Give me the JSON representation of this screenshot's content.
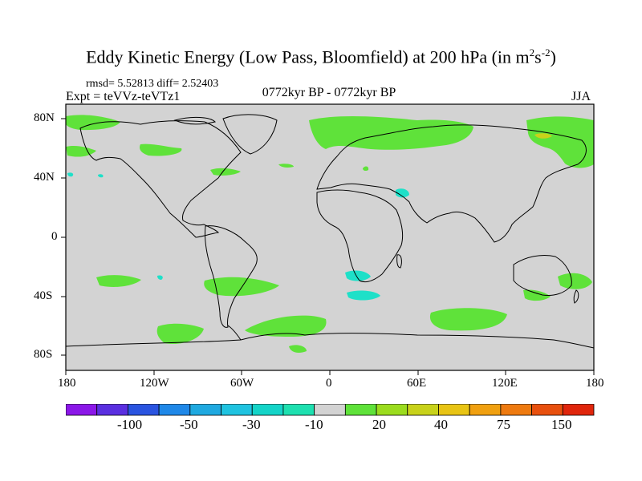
{
  "title": {
    "main": "Eddy Kinetic Energy (Low Pass, Bloomfield) at 200 hPa (in m",
    "sup1": "2",
    "mid": "s",
    "sup2": "-2",
    "end": ")"
  },
  "stats": "rmsd= 5.52813 diff= 2.52403",
  "experiment": "Expt = teVVz-teVTz1",
  "period": "0772kyr BP - 0772kyr BP",
  "season": "JJA",
  "lat_labels": [
    "80N",
    "40N",
    "0",
    "40S",
    "80S"
  ],
  "lon_labels": [
    "180",
    "120W",
    "60W",
    "0",
    "60E",
    "120E",
    "180"
  ],
  "colorbar": {
    "labels": [
      "-100",
      "-50",
      "-30",
      "-10",
      "20",
      "40",
      "75",
      "150"
    ],
    "colors": [
      "#8b17e8",
      "#5a2fe0",
      "#2a54e0",
      "#1f88e8",
      "#1fa9e0",
      "#1fc3e0",
      "#14d4c8",
      "#1ee0b0",
      "#d3d3d3",
      "#5fe23a",
      "#9bdc1e",
      "#c8d21a",
      "#e8c414",
      "#f0a010",
      "#ee7a10",
      "#e8500e",
      "#e0260c"
    ]
  },
  "map_colors": {
    "background": "#d3d3d3",
    "positive_light": "#5fe23a",
    "positive_mid": "#c8d21a",
    "negative_light": "#1ee0c8"
  }
}
